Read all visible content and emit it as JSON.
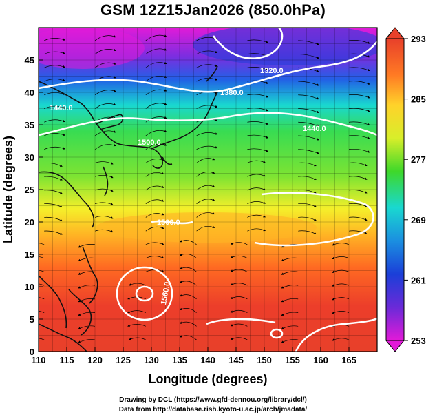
{
  "title": "GSM 12Z15Jan2026 (850.0hPa)",
  "xlabel": "Longitude (degrees)",
  "ylabel": "Latitude  (degrees)",
  "x_ticks": [
    "110",
    "115",
    "120",
    "125",
    "130",
    "135",
    "140",
    "145",
    "150",
    "155",
    "160",
    "165"
  ],
  "y_ticks": [
    "0",
    "5",
    "10",
    "15",
    "20",
    "25",
    "30",
    "35",
    "40",
    "45"
  ],
  "colorbar_ticks": [
    "293",
    "285",
    "277",
    "269",
    "261",
    "253"
  ],
  "contour_labels": [
    "1320.0",
    "1380.0",
    "1440.0",
    "1440.0",
    "1500.0",
    "1500.0",
    "1560.0"
  ],
  "credit_line1": "Drawing by DCL (https://www.gfd-dennou.org/library/dcl/)",
  "credit_line2": "Data from http://database.rish.kyoto-u.ac.jp/arch/jmadata/",
  "colors": {
    "warm": "#e8402a",
    "orange": "#ff9a22",
    "yellow": "#f5ef2a",
    "green": "#3ed82a",
    "cyan": "#19d8d0",
    "blue": "#1b3fd8",
    "magenta": "#e21ad8"
  }
}
